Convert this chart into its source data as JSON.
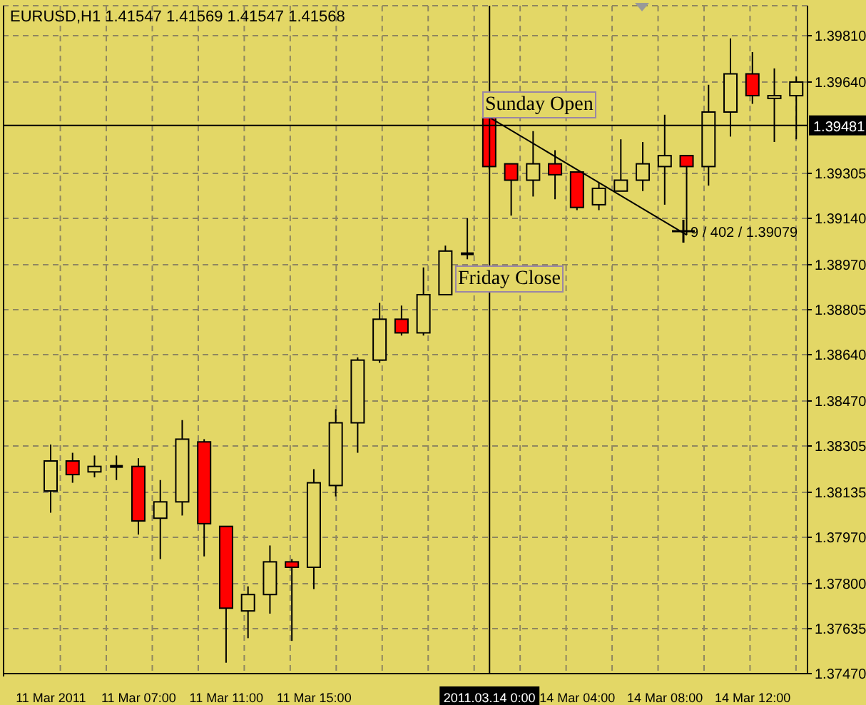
{
  "chart_data": {
    "type": "candlestick",
    "title": "EURUSD,H1 1.41547 1.41569 1.41547 1.41568",
    "categories": [
      "11 Mar 2011",
      null,
      null,
      null,
      "11 Mar 07:00",
      null,
      null,
      null,
      "11 Mar 11:00",
      null,
      null,
      null,
      "11 Mar 15:00",
      null,
      null,
      null,
      null,
      null,
      null,
      null,
      "2011.03.14 0:00",
      null,
      null,
      null,
      "14 Mar 04:00",
      null,
      null,
      null,
      "14 Mar 08:00",
      null,
      null,
      null,
      "14 Mar 12:00",
      null,
      null
    ],
    "ohlc": [
      [
        1.3814,
        1.3831,
        1.3806,
        1.3825
      ],
      [
        1.3825,
        1.3828,
        1.3817,
        1.382
      ],
      [
        1.3821,
        1.3827,
        1.3819,
        1.3823
      ],
      [
        1.3823,
        1.3827,
        1.3818,
        1.3823
      ],
      [
        1.3823,
        1.3826,
        1.3798,
        1.3803
      ],
      [
        1.3804,
        1.3818,
        1.3789,
        1.381
      ],
      [
        1.381,
        1.384,
        1.3805,
        1.3833
      ],
      [
        1.3832,
        1.3833,
        1.379,
        1.3802
      ],
      [
        1.3801,
        1.3801,
        1.3751,
        1.3771
      ],
      [
        1.377,
        1.3779,
        1.376,
        1.3776
      ],
      [
        1.3776,
        1.3794,
        1.3769,
        1.3788
      ],
      [
        1.3788,
        1.3789,
        1.3759,
        1.3786
      ],
      [
        1.3786,
        1.3822,
        1.3778,
        1.3817
      ],
      [
        1.3816,
        1.3844,
        1.3812,
        1.3839
      ],
      [
        1.3839,
        1.3863,
        1.3828,
        1.3862
      ],
      [
        1.3862,
        1.3883,
        1.3861,
        1.3877
      ],
      [
        1.3877,
        1.3882,
        1.3871,
        1.3872
      ],
      [
        1.3872,
        1.3896,
        1.3871,
        1.3886
      ],
      [
        1.3886,
        1.3904,
        1.3886,
        1.3902
      ],
      [
        1.3901,
        1.3914,
        1.3899,
        1.3901
      ],
      [
        1.3951,
        1.3951,
        1.3932,
        1.3933
      ],
      [
        1.3934,
        1.3934,
        1.3915,
        1.3928
      ],
      [
        1.3928,
        1.3946,
        1.3922,
        1.3934
      ],
      [
        1.3934,
        1.3939,
        1.3921,
        1.393
      ],
      [
        1.3931,
        1.3931,
        1.3917,
        1.3918
      ],
      [
        1.3919,
        1.3927,
        1.3917,
        1.3925
      ],
      [
        1.3924,
        1.3943,
        1.3924,
        1.3928
      ],
      [
        1.3928,
        1.3942,
        1.3924,
        1.3934
      ],
      [
        1.3933,
        1.3952,
        1.3919,
        1.3937
      ],
      [
        1.3937,
        1.3937,
        1.3908,
        1.3933
      ],
      [
        1.3933,
        1.3963,
        1.3926,
        1.3953
      ],
      [
        1.3953,
        1.398,
        1.3944,
        1.3967
      ],
      [
        1.3967,
        1.3975,
        1.3956,
        1.3959
      ],
      [
        1.3958,
        1.3969,
        1.3942,
        1.3959
      ],
      [
        1.3959,
        1.3966,
        1.3943,
        1.3964
      ]
    ],
    "colors": [
      "#e3d766",
      "#ff0000",
      "#e3d766",
      "#000000",
      "#ff0000",
      "#e3d766",
      "#e3d766",
      "#ff0000",
      "#ff0000",
      "#e3d766",
      "#e3d766",
      "#ff0000",
      "#e3d766",
      "#e3d766",
      "#e3d766",
      "#e3d766",
      "#ff0000",
      "#e3d766",
      "#e3d766",
      "#000000",
      "#ff0000",
      "#ff0000",
      "#e3d766",
      "#ff0000",
      "#ff0000",
      "#e3d766",
      "#e3d766",
      "#e3d766",
      "#e3d766",
      "#ff0000",
      "#e3d766",
      "#e3d766",
      "#ff0000",
      "#e3d766",
      "#e3d766"
    ],
    "series": [
      {
        "type": "line",
        "color": "#000000",
        "values": [
          null,
          null,
          null,
          null,
          null,
          null,
          null,
          null,
          null,
          null,
          null,
          null,
          null,
          null,
          null,
          null,
          null,
          null,
          null,
          null,
          1.3951,
          null,
          null,
          null,
          null,
          null,
          null,
          null,
          null,
          1.39079,
          null,
          null,
          null,
          null,
          null
        ]
      }
    ],
    "ylim": [
      1.3747,
      1.3992
    ],
    "yticks": [
      {
        "value": 1.3747,
        "label": "1.37470"
      },
      {
        "value": 1.37635,
        "label": "1.37635"
      },
      {
        "value": 1.378,
        "label": "1.37800"
      },
      {
        "value": 1.3797,
        "label": "1.37970"
      },
      {
        "value": 1.38135,
        "label": "1.38135"
      },
      {
        "value": 1.38305,
        "label": "1.38305"
      },
      {
        "value": 1.3847,
        "label": "1.38470"
      },
      {
        "value": 1.3864,
        "label": "1.38640"
      },
      {
        "value": 1.38805,
        "label": "1.38805"
      },
      {
        "value": 1.3897,
        "label": "1.38970"
      },
      {
        "value": 1.3914,
        "label": "1.39140"
      },
      {
        "value": 1.39305,
        "label": "1.39305"
      },
      {
        "value": 1.3964,
        "label": "1.39640"
      },
      {
        "value": 1.3981,
        "label": "1.39810"
      }
    ],
    "ref_lines": [
      {
        "axis": "x",
        "value": "2011.03.14 0:00"
      },
      {
        "axis": "y",
        "value": 1.39481,
        "label": "1.39481"
      }
    ],
    "annotations": [
      "Sunday Open",
      "Friday Close",
      "9 / 402 / 1.39079"
    ],
    "grid": true,
    "marker": "none"
  }
}
